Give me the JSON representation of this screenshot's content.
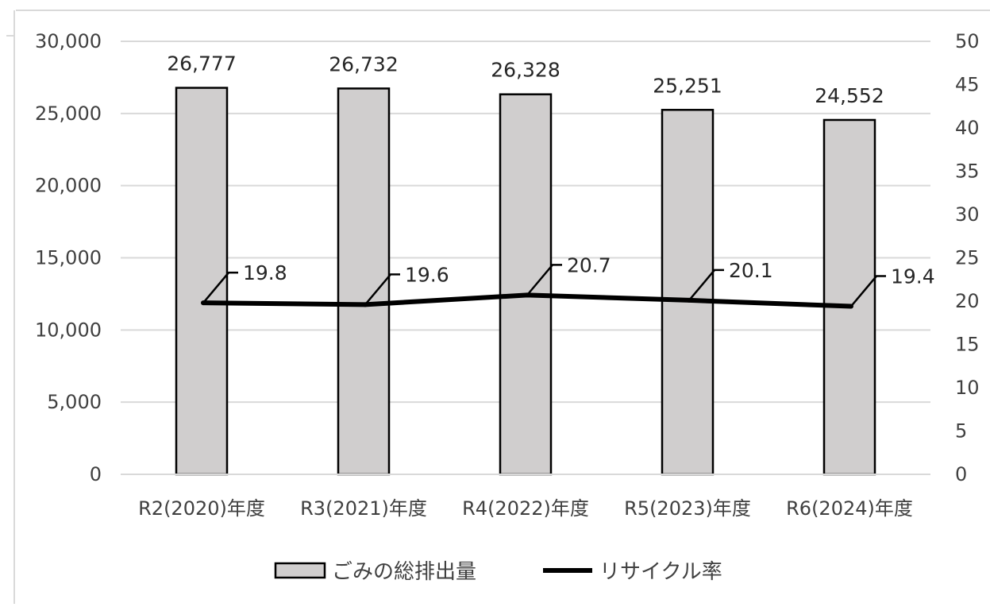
{
  "chart_data": {
    "type": "bar",
    "categories": [
      "R2(2020)年度",
      "R3(2021)年度",
      "R4(2022)年度",
      "R5(2023)年度",
      "R6(2024)年度"
    ],
    "series": [
      {
        "name": "ごみの総排出量",
        "type": "bar",
        "axis": "left",
        "values": [
          26777,
          26732,
          26328,
          25251,
          24552
        ],
        "labels": [
          "26,777",
          "26,732",
          "26,328",
          "25,251",
          "24,552"
        ],
        "color": "#d0cece"
      },
      {
        "name": "リサイクル率",
        "type": "line",
        "axis": "right",
        "values": [
          19.8,
          19.6,
          20.7,
          20.1,
          19.4
        ],
        "labels": [
          "19.8",
          "19.6",
          "20.7",
          "20.1",
          "19.4"
        ],
        "color": "#000000"
      }
    ],
    "y_left": {
      "range": [
        0,
        30000
      ],
      "ticks": [
        0,
        5000,
        10000,
        15000,
        20000,
        25000,
        30000
      ],
      "tick_labels": [
        "0",
        "5,000",
        "10,000",
        "15,000",
        "20,000",
        "25,000",
        "30,000"
      ]
    },
    "y_right": {
      "range": [
        0,
        50
      ],
      "ticks": [
        0,
        5,
        10,
        15,
        20,
        25,
        30,
        35,
        40,
        45,
        50
      ],
      "tick_labels": [
        "0",
        "5",
        "10",
        "15",
        "20",
        "25",
        "30",
        "35",
        "40",
        "45",
        "50"
      ]
    },
    "title": "",
    "xlabel": "",
    "ylabel": "",
    "grid": true,
    "legend_position": "bottom",
    "gridline_color": "#d9d9d9",
    "frame_color": "#d9d9d9"
  }
}
